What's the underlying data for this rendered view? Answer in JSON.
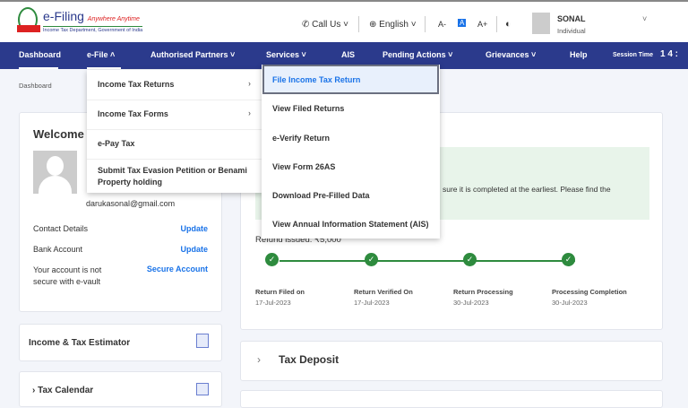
{
  "header": {
    "logo_title": "e-Filing",
    "logo_tagline": "Anywhere Anytime",
    "logo_subtitle": "Income Tax Department, Government of India",
    "call_us": "Call Us",
    "language": "English",
    "font_decrease": "A-",
    "font_normal": "A",
    "font_increase": "A+",
    "user_name": "SONAL",
    "user_role": "Individual"
  },
  "nav": {
    "items": [
      "Dashboard",
      "e-File",
      "Authorised Partners",
      "Services",
      "AIS",
      "Pending Actions",
      "Grievances",
      "Help"
    ],
    "session_label": "Session Time",
    "session_value": "1 4 :"
  },
  "breadcrumb": "Dashboard",
  "efile_menu": {
    "items": [
      "Income Tax Returns",
      "Income Tax Forms",
      "e-Pay Tax",
      "Submit Tax Evasion Petition or Benami Property holding"
    ]
  },
  "itr_submenu": {
    "items": [
      "File Income Tax Return",
      "View Filed Returns",
      "e-Verify Return",
      "View Form 26AS",
      "Download Pre-Filled Data",
      "View Annual Information Statement (AIS)"
    ]
  },
  "profile": {
    "welcome": "Welcome B",
    "email": "darukasonal@gmail.com",
    "contact_label": "Contact Details",
    "contact_action": "Update",
    "bank_label": "Bank Account",
    "bank_action": "Update",
    "vault_label": "Your account is not secure with e-vault",
    "vault_action": "Secure Account"
  },
  "estimator": {
    "title": "Income & Tax Estimator"
  },
  "calendar": {
    "title": "Tax Calendar"
  },
  "status": {
    "notice": "sure it is completed at the earliest. Please find the",
    "refund": "Refund issued: ₹5,000",
    "steps": [
      {
        "label": "Return Filed on",
        "date": "17-Jul-2023"
      },
      {
        "label": "Return Verified On",
        "date": "17-Jul-2023"
      },
      {
        "label": "Return Processing",
        "date": "30-Jul-2023"
      },
      {
        "label": "Processing Completion",
        "date": "30-Jul-2023"
      }
    ]
  },
  "tax_deposit": {
    "title": "Tax Deposit"
  },
  "colors": {
    "nav": "#2b3a8c",
    "link": "#1a73e8",
    "success": "#2e8b3e",
    "notice_bg": "#e8f4ea"
  }
}
